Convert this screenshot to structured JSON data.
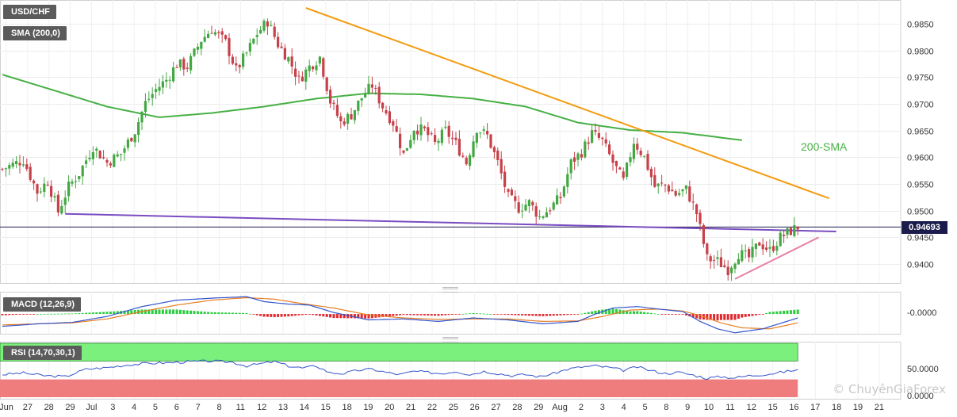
{
  "header": {
    "symbol": "USD/CHF",
    "indicator": "SMA (200,0)"
  },
  "sma_annotation": "200-SMA",
  "current_price": "0.94693",
  "macd": {
    "label": "MACD (12,26,9)",
    "axis_label": "-0.0000"
  },
  "rsi": {
    "label": "RSI (14,70,30,1)",
    "axis_labels": [
      "50.0000",
      "0.0000"
    ]
  },
  "watermark": "© ChuyênGiaForex",
  "colors": {
    "bull": "#43a843",
    "bear": "#c6414a",
    "sma": "#46b044",
    "trend_resistance": "#f39c12",
    "trend_support_long": "#7a4cc2",
    "trend_support_short": "#e87fa6",
    "price_line": "#1c1c4c",
    "macd_line": "#3355cc",
    "signal_line": "#e67e22",
    "rsi_overbought_zone": "#7cf07c",
    "rsi_oversold_zone": "#f07d7d"
  },
  "chart_data": {
    "type": "candlestick",
    "title": "USD/CHF",
    "ylim": [
      0.9355,
      0.988
    ],
    "y_ticks": [
      "0.9850",
      "0.9800",
      "0.9750",
      "0.9700",
      "0.9650",
      "0.9600",
      "0.9550",
      "0.9500",
      "0.9450",
      "0.9400"
    ],
    "x_ticks": [
      "Jun",
      "27",
      "28",
      "29",
      "Jul",
      "3",
      "4",
      "5",
      "6",
      "7",
      "8",
      "11",
      "12",
      "13",
      "14",
      "15",
      "18",
      "19",
      "20",
      "21",
      "22",
      "25",
      "26",
      "27",
      "28",
      "29",
      "Aug",
      "2",
      "3",
      "4",
      "5",
      "8",
      "9",
      "10",
      "11",
      "12",
      "15",
      "16",
      "17",
      "18",
      "19",
      "21"
    ],
    "close_path": [
      [
        0,
        0.9578
      ],
      [
        6,
        0.9595
      ],
      [
        10,
        0.9535
      ],
      [
        13,
        0.9555
      ],
      [
        16,
        0.9498
      ],
      [
        19,
        0.9545
      ],
      [
        22,
        0.957
      ],
      [
        26,
        0.962
      ],
      [
        30,
        0.959
      ],
      [
        34,
        0.9607
      ],
      [
        38,
        0.965
      ],
      [
        41,
        0.9702
      ],
      [
        44,
        0.9727
      ],
      [
        47,
        0.9745
      ],
      [
        50,
        0.9775
      ],
      [
        53,
        0.977
      ],
      [
        57,
        0.982
      ],
      [
        60,
        0.984
      ],
      [
        64,
        0.9815
      ],
      [
        67,
        0.9763
      ],
      [
        70,
        0.9795
      ],
      [
        73,
        0.9832
      ],
      [
        76,
        0.9855
      ],
      [
        79,
        0.9812
      ],
      [
        82,
        0.9785
      ],
      [
        85,
        0.9745
      ],
      [
        88,
        0.977
      ],
      [
        91,
        0.9788
      ],
      [
        94,
        0.9705
      ],
      [
        97,
        0.9665
      ],
      [
        100,
        0.968
      ],
      [
        103,
        0.9712
      ],
      [
        106,
        0.9735
      ],
      [
        109,
        0.9695
      ],
      [
        112,
        0.9665
      ],
      [
        115,
        0.9605
      ],
      [
        118,
        0.9655
      ],
      [
        121,
        0.965
      ],
      [
        124,
        0.9625
      ],
      [
        127,
        0.965
      ],
      [
        130,
        0.9625
      ],
      [
        133,
        0.959
      ],
      [
        136,
        0.9655
      ],
      [
        139,
        0.964
      ],
      [
        142,
        0.959
      ],
      [
        145,
        0.9525
      ],
      [
        148,
        0.9505
      ],
      [
        151,
        0.9515
      ],
      [
        154,
        0.9488
      ],
      [
        157,
        0.9505
      ],
      [
        160,
        0.9525
      ],
      [
        163,
        0.959
      ],
      [
        166,
        0.961
      ],
      [
        169,
        0.9645
      ],
      [
        172,
        0.963
      ],
      [
        175,
        0.959
      ],
      [
        178,
        0.9555
      ],
      [
        181,
        0.963
      ],
      [
        184,
        0.96
      ],
      [
        187,
        0.9545
      ],
      [
        190,
        0.9548
      ],
      [
        193,
        0.953
      ],
      [
        196,
        0.954
      ],
      [
        199,
        0.9495
      ],
      [
        202,
        0.941
      ],
      [
        205,
        0.9405
      ],
      [
        208,
        0.939
      ],
      [
        211,
        0.942
      ],
      [
        214,
        0.9412
      ],
      [
        217,
        0.944
      ],
      [
        220,
        0.9425
      ],
      [
        223,
        0.945
      ],
      [
        226,
        0.9462
      ],
      [
        228,
        0.94693
      ]
    ],
    "sma_200": [
      [
        0,
        0.9755
      ],
      [
        15,
        0.9725
      ],
      [
        30,
        0.9695
      ],
      [
        45,
        0.9675
      ],
      [
        60,
        0.9683
      ],
      [
        75,
        0.9695
      ],
      [
        90,
        0.971
      ],
      [
        105,
        0.972
      ],
      [
        120,
        0.9718
      ],
      [
        135,
        0.971
      ],
      [
        150,
        0.9695
      ],
      [
        165,
        0.9665
      ],
      [
        180,
        0.9651
      ],
      [
        195,
        0.9646
      ],
      [
        212,
        0.9632
      ]
    ],
    "trendlines": [
      {
        "name": "resistance",
        "from": [
          87,
          0.988
        ],
        "to": [
          237,
          0.9523
        ]
      },
      {
        "name": "support_long",
        "from": [
          18,
          0.9494
        ],
        "to": [
          239,
          0.9461
        ]
      },
      {
        "name": "support_short",
        "from": [
          210,
          0.9372
        ],
        "to": [
          234,
          0.945
        ]
      }
    ],
    "macd": {
      "ylim": [
        -0.004,
        0.0045
      ],
      "macd_path": [
        [
          0,
          -0.0025
        ],
        [
          10,
          -0.002
        ],
        [
          20,
          -0.0017
        ],
        [
          30,
          -0.0005
        ],
        [
          40,
          0.0015
        ],
        [
          50,
          0.0028
        ],
        [
          60,
          0.0032
        ],
        [
          70,
          0.0035
        ],
        [
          75,
          0.0025
        ],
        [
          82,
          0.002
        ],
        [
          88,
          0.0018
        ],
        [
          95,
          0.0003
        ],
        [
          105,
          -0.0012
        ],
        [
          115,
          -0.001
        ],
        [
          125,
          -0.0015
        ],
        [
          135,
          -0.0008
        ],
        [
          145,
          -0.0012
        ],
        [
          155,
          -0.002
        ],
        [
          165,
          -0.0015
        ],
        [
          170,
          0.0
        ],
        [
          175,
          0.0012
        ],
        [
          182,
          0.0015
        ],
        [
          188,
          0.001
        ],
        [
          195,
          0.0005
        ],
        [
          200,
          -0.0015
        ],
        [
          205,
          -0.003
        ],
        [
          210,
          -0.0038
        ],
        [
          218,
          -0.003
        ],
        [
          228,
          -0.0008
        ]
      ],
      "signal_path": [
        [
          0,
          -0.0022
        ],
        [
          10,
          -0.002
        ],
        [
          20,
          -0.0018
        ],
        [
          30,
          -0.001
        ],
        [
          40,
          0.0005
        ],
        [
          50,
          0.0018
        ],
        [
          60,
          0.0028
        ],
        [
          70,
          0.0033
        ],
        [
          78,
          0.003
        ],
        [
          85,
          0.0022
        ],
        [
          95,
          0.0012
        ],
        [
          105,
          -0.0002
        ],
        [
          115,
          -0.0008
        ],
        [
          125,
          -0.0011
        ],
        [
          135,
          -0.001
        ],
        [
          145,
          -0.001
        ],
        [
          155,
          -0.0015
        ],
        [
          165,
          -0.0014
        ],
        [
          172,
          -0.0005
        ],
        [
          180,
          0.0008
        ],
        [
          188,
          0.001
        ],
        [
          195,
          0.0006
        ],
        [
          200,
          -0.0003
        ],
        [
          206,
          -0.0018
        ],
        [
          212,
          -0.0028
        ],
        [
          220,
          -0.003
        ],
        [
          228,
          -0.0018
        ]
      ]
    },
    "rsi": {
      "ylim": [
        0,
        100
      ],
      "overbought": 70,
      "oversold": 30,
      "path": [
        [
          0,
          42
        ],
        [
          6,
          45
        ],
        [
          12,
          40
        ],
        [
          18,
          38
        ],
        [
          24,
          52
        ],
        [
          30,
          55
        ],
        [
          36,
          60
        ],
        [
          42,
          63
        ],
        [
          48,
          64
        ],
        [
          54,
          66
        ],
        [
          60,
          67
        ],
        [
          66,
          65
        ],
        [
          70,
          58
        ],
        [
          74,
          62
        ],
        [
          78,
          66
        ],
        [
          82,
          58
        ],
        [
          86,
          54
        ],
        [
          90,
          58
        ],
        [
          94,
          45
        ],
        [
          98,
          44
        ],
        [
          102,
          50
        ],
        [
          106,
          52
        ],
        [
          110,
          46
        ],
        [
          114,
          42
        ],
        [
          118,
          48
        ],
        [
          122,
          46
        ],
        [
          126,
          44
        ],
        [
          130,
          48
        ],
        [
          134,
          42
        ],
        [
          138,
          48
        ],
        [
          142,
          44
        ],
        [
          146,
          40
        ],
        [
          150,
          42
        ],
        [
          154,
          38
        ],
        [
          158,
          44
        ],
        [
          162,
          52
        ],
        [
          166,
          56
        ],
        [
          170,
          58
        ],
        [
          174,
          55
        ],
        [
          178,
          50
        ],
        [
          182,
          56
        ],
        [
          186,
          49
        ],
        [
          190,
          44
        ],
        [
          194,
          46
        ],
        [
          198,
          41
        ],
        [
          202,
          35
        ],
        [
          206,
          38
        ],
        [
          210,
          36
        ],
        [
          214,
          40
        ],
        [
          218,
          42
        ],
        [
          222,
          45
        ],
        [
          226,
          49
        ],
        [
          228,
          51
        ]
      ]
    }
  }
}
